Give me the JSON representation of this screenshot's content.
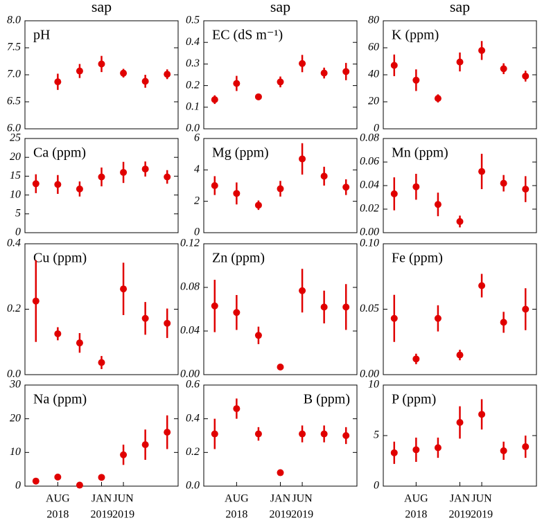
{
  "chart_data": [
    {
      "type": "scatter",
      "title": "sap",
      "label": "pH",
      "label_loc": "upper left",
      "color": "#e00000",
      "categories": [
        null,
        null,
        null,
        null,
        null,
        null,
        null
      ],
      "values": [
        null,
        6.87,
        7.07,
        7.2,
        7.03,
        6.88,
        7.01
      ],
      "errors": [
        null,
        0.15,
        0.13,
        0.15,
        0.08,
        0.12,
        0.09
      ],
      "ylim": [
        6,
        8
      ],
      "yticks": [
        {
          "value": 6,
          "label": "6.0"
        },
        6.5,
        {
          "value": 7,
          "label": "7.0"
        },
        7.5,
        {
          "value": 8,
          "label": "8.0"
        }
      ]
    },
    {
      "type": "scatter",
      "title": "sap",
      "label": "EC (dS m⁻¹)",
      "label_loc": "upper left",
      "color": "#e00000",
      "categories": [
        null,
        null,
        null,
        null,
        null,
        null,
        null
      ],
      "values": [
        0.135,
        0.21,
        0.148,
        0.217,
        0.302,
        0.258,
        0.265
      ],
      "errors": [
        0.02,
        0.035,
        0.005,
        0.025,
        0.04,
        0.025,
        0.04
      ],
      "ylim": [
        0,
        0.5
      ],
      "yticks": [
        {
          "value": 0,
          "label": "0.0"
        },
        0.1,
        0.2,
        0.3,
        0.4,
        0.5
      ]
    },
    {
      "type": "scatter",
      "title": "sap",
      "label": "K (ppm)",
      "label_loc": "upper left",
      "color": "#e00000",
      "categories": [
        null,
        null,
        null,
        null,
        null,
        null,
        null
      ],
      "values": [
        47,
        36,
        22.5,
        49.5,
        58,
        44.5,
        39
      ],
      "errors": [
        8,
        8,
        3,
        7,
        7,
        4,
        4
      ],
      "ylim": [
        0,
        80
      ],
      "yticks": [
        0,
        20,
        40,
        60,
        80
      ]
    },
    {
      "type": "scatter",
      "label": "Ca (ppm)",
      "label_loc": "upper left",
      "color": "#e00000",
      "categories": [
        null,
        null,
        null,
        null,
        null,
        null,
        null
      ],
      "values": [
        13,
        12.8,
        11.6,
        14.8,
        16,
        16.9,
        14.8
      ],
      "errors": [
        2.5,
        2.5,
        2,
        2.5,
        2.8,
        2,
        1.8
      ],
      "ylim": [
        0,
        25
      ],
      "yticks": [
        0,
        5,
        10,
        15,
        20,
        25
      ]
    },
    {
      "type": "scatter",
      "label": "Mg (ppm)",
      "label_loc": "upper left",
      "color": "#e00000",
      "categories": [
        null,
        null,
        null,
        null,
        null,
        null,
        null
      ],
      "values": [
        3.0,
        2.5,
        1.75,
        2.8,
        4.7,
        3.6,
        2.9
      ],
      "errors": [
        0.6,
        0.7,
        0.3,
        0.5,
        1.0,
        0.6,
        0.5
      ],
      "ylim": [
        0,
        6
      ],
      "yticks": [
        0,
        2,
        4,
        6
      ]
    },
    {
      "type": "scatter",
      "label": "Mn (ppm)",
      "label_loc": "upper left",
      "color": "#e00000",
      "categories": [
        null,
        null,
        null,
        null,
        null,
        null,
        null
      ],
      "values": [
        0.033,
        0.039,
        0.024,
        0.0095,
        0.052,
        0.042,
        0.037
      ],
      "errors": [
        0.014,
        0.011,
        0.01,
        0.005,
        0.015,
        0.007,
        0.011
      ],
      "ylim": [
        0,
        0.08
      ],
      "yticks": [
        {
          "value": 0,
          "label": "0.00"
        },
        {
          "value": 0.02,
          "label": "0.02"
        },
        {
          "value": 0.04,
          "label": "0.04"
        },
        {
          "value": 0.06,
          "label": "0.06"
        },
        {
          "value": 0.08,
          "label": "0.08"
        }
      ]
    },
    {
      "type": "scatter",
      "label": "Cu (ppm)",
      "label_loc": "upper left",
      "color": "#e00000",
      "categories": [
        null,
        null,
        null,
        null,
        null,
        null,
        null
      ],
      "values": [
        0.225,
        0.125,
        0.097,
        0.037,
        0.262,
        0.172,
        0.157
      ],
      "errors": [
        0.125,
        0.02,
        0.03,
        0.02,
        0.08,
        0.05,
        0.045
      ],
      "ylim": [
        0,
        0.4
      ],
      "yticks": [
        {
          "value": 0,
          "label": "0.0"
        },
        0.2,
        0.4
      ]
    },
    {
      "type": "scatter",
      "label": "Zn (ppm)",
      "label_loc": "upper left",
      "color": "#e00000",
      "categories": [
        null,
        null,
        null,
        null,
        null,
        null,
        null
      ],
      "values": [
        0.063,
        0.057,
        0.036,
        0.007,
        0.077,
        0.062,
        0.062
      ],
      "errors": [
        0.024,
        0.016,
        0.008,
        0.001,
        0.02,
        0.015,
        0.021
      ],
      "ylim": [
        0,
        0.12
      ],
      "yticks": [
        {
          "value": 0,
          "label": "0.00"
        },
        {
          "value": 0.04,
          "label": "0.04"
        },
        {
          "value": 0.08,
          "label": "0.08"
        },
        {
          "value": 0.12,
          "label": "0.12"
        }
      ]
    },
    {
      "type": "scatter",
      "label": "Fe (ppm)",
      "label_loc": "upper left",
      "color": "#e00000",
      "categories": [
        null,
        null,
        null,
        null,
        null,
        null,
        null
      ],
      "values": [
        0.043,
        0.012,
        0.043,
        0.015,
        0.068,
        0.04,
        0.05
      ],
      "errors": [
        0.018,
        0.004,
        0.01,
        0.004,
        0.009,
        0.008,
        0.016
      ],
      "ylim": [
        0,
        0.1
      ],
      "yticks": [
        {
          "value": 0,
          "label": "0.00"
        },
        {
          "value": 0.05,
          "label": "0.05"
        },
        {
          "value": 0.1,
          "label": "0.10"
        }
      ]
    },
    {
      "type": "scatter",
      "label": "Na (ppm)",
      "label_loc": "upper left",
      "color": "#e00000",
      "categories": [
        null,
        [
          "AUG",
          "2018"
        ],
        null,
        [
          "JAN",
          "2019"
        ],
        [
          "JUN",
          "2019"
        ],
        null,
        null
      ],
      "values": [
        1.5,
        2.7,
        0.3,
        2.6,
        9.3,
        12.3,
        16
      ],
      "errors": [
        0.3,
        0.3,
        0.1,
        0.3,
        3,
        4.5,
        5
      ],
      "ylim": [
        0,
        30
      ],
      "yticks": [
        0,
        10,
        20,
        30
      ]
    },
    {
      "type": "scatter",
      "label": "B (ppm)",
      "label_loc": "upper right",
      "color": "#e00000",
      "categories": [
        null,
        [
          "AUG",
          "2018"
        ],
        null,
        [
          "JAN",
          "2019"
        ],
        [
          "JUN",
          "2019"
        ],
        null,
        null
      ],
      "values": [
        0.31,
        0.46,
        0.31,
        0.08,
        0.31,
        0.31,
        0.3
      ],
      "errors": [
        0.09,
        0.06,
        0.04,
        0.005,
        0.05,
        0.05,
        0.05
      ],
      "ylim": [
        0,
        0.6
      ],
      "yticks": [
        {
          "value": 0,
          "label": "0.0"
        },
        0.2,
        0.4,
        0.6
      ]
    },
    {
      "type": "scatter",
      "label": "P (ppm)",
      "label_loc": "upper left",
      "color": "#e00000",
      "categories": [
        null,
        [
          "AUG",
          "2018"
        ],
        null,
        [
          "JAN",
          "2019"
        ],
        [
          "JUN",
          "2019"
        ],
        null,
        null
      ],
      "values": [
        3.3,
        3.6,
        3.8,
        6.3,
        7.1,
        3.5,
        3.9
      ],
      "errors": [
        1.1,
        1.2,
        1,
        1.6,
        1.5,
        0.9,
        1.1
      ],
      "ylim": [
        0,
        10
      ],
      "yticks": [
        0,
        5,
        10
      ]
    }
  ]
}
